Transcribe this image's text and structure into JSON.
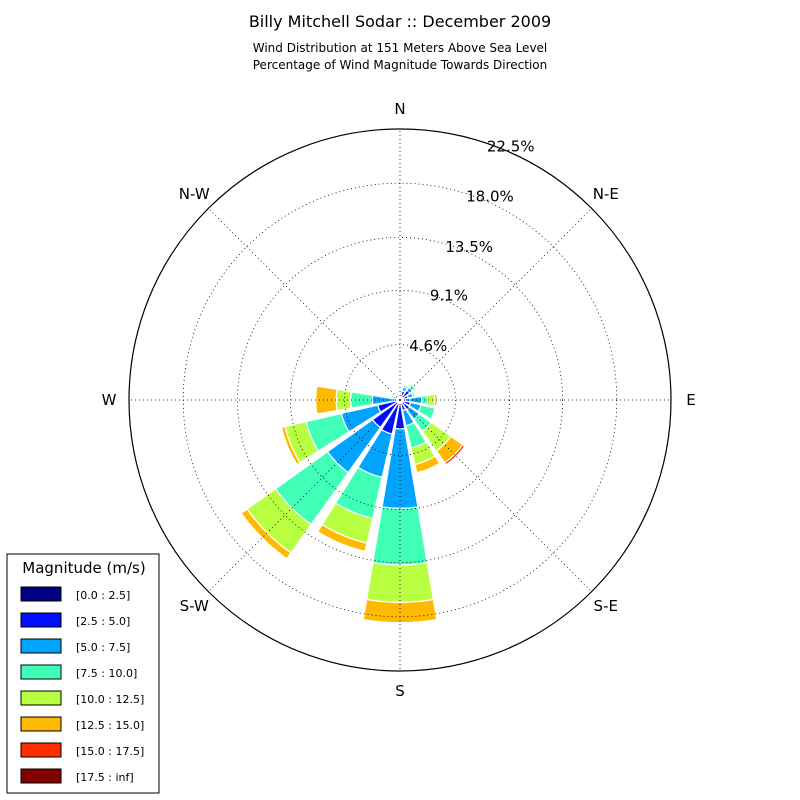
{
  "title": "Billy Mitchell Sodar :: December 2009",
  "subtitle_1": "Wind Distribution at 151 Meters Above Sea Level",
  "subtitle_2": "Percentage of Wind Magnitude Towards Direction",
  "legend": {
    "title": "Magnitude (m/s)",
    "placement": "bottom-left",
    "entries": [
      {
        "label": "[0.0 : 2.5]",
        "color": "#000080"
      },
      {
        "label": "[2.5 : 5.0]",
        "color": "#0010ff"
      },
      {
        "label": "[5.0 : 7.5]",
        "color": "#00a4ff"
      },
      {
        "label": "[7.5 : 10.0]",
        "color": "#40ffb7"
      },
      {
        "label": "[10.0 : 12.5]",
        "color": "#b7ff40"
      },
      {
        "label": "[12.5 : 15.0]",
        "color": "#ffb900"
      },
      {
        "label": "[15.0 : 17.5]",
        "color": "#ff3000"
      },
      {
        "label": "[17.5 : inf]",
        "color": "#800000"
      }
    ]
  },
  "chart_data": {
    "type": "windrose",
    "radial_unit": "percent",
    "radial_ticks": [
      "4.6%",
      "9.1%",
      "13.5%",
      "18.0%",
      "22.5%"
    ],
    "radial_tick_values": [
      4.6,
      9.1,
      13.5,
      18.0,
      22.5
    ],
    "rmax": 22.5,
    "grid": true,
    "direction_labels": [
      {
        "label": "N",
        "angle": 0
      },
      {
        "label": "N-E",
        "angle": 45
      },
      {
        "label": "E",
        "angle": 90
      },
      {
        "label": "S-E",
        "angle": 135
      },
      {
        "label": "S",
        "angle": 180
      },
      {
        "label": "S-W",
        "angle": 225
      },
      {
        "label": "W",
        "angle": 270
      },
      {
        "label": "N-W",
        "angle": 315
      }
    ],
    "bins": [
      "[0.0 : 2.5]",
      "[2.5 : 5.0]",
      "[5.0 : 7.5]",
      "[7.5 : 10.0]",
      "[10.0 : 12.5]",
      "[12.5 : 15.0]",
      "[15.0 : 17.5]",
      "[17.5 : inf]"
    ],
    "sectors": [
      {
        "direction": 0,
        "cumulative": [
          0.1,
          0.15,
          0.2,
          0.2,
          0.2,
          0.2,
          0.2,
          0.2
        ]
      },
      {
        "direction": 22.5,
        "cumulative": [
          0.2,
          0.8,
          1.1,
          1.3,
          1.4,
          1.4,
          1.4,
          1.4
        ]
      },
      {
        "direction": 45,
        "cumulative": [
          0.2,
          1.0,
          1.3,
          1.6,
          1.7,
          1.8,
          1.8,
          1.8
        ]
      },
      {
        "direction": 67.5,
        "cumulative": [
          0.2,
          0.7,
          1.1,
          1.3,
          1.4,
          1.45,
          1.45,
          1.45
        ]
      },
      {
        "direction": 90,
        "cumulative": [
          0.2,
          0.8,
          1.8,
          2.3,
          2.9,
          3.1,
          3.1,
          3.1
        ]
      },
      {
        "direction": 112.5,
        "cumulative": [
          0.3,
          0.9,
          1.8,
          3.0,
          3.0,
          3.1,
          3.1,
          3.1
        ]
      },
      {
        "direction": 135,
        "cumulative": [
          0.3,
          1.0,
          2.0,
          3.2,
          5.2,
          6.4,
          6.6,
          6.6
        ]
      },
      {
        "direction": 157.5,
        "cumulative": [
          0.3,
          0.9,
          2.2,
          4.1,
          5.5,
          6.2,
          6.3,
          6.3
        ]
      },
      {
        "direction": 180,
        "cumulative": [
          0.3,
          2.4,
          9.0,
          13.7,
          16.8,
          18.5,
          18.6,
          18.6
        ]
      },
      {
        "direction": 202.5,
        "cumulative": [
          0.3,
          2.9,
          6.6,
          10.1,
          12.2,
          12.9,
          13.0,
          13.0
        ]
      },
      {
        "direction": 225,
        "cumulative": [
          0.2,
          2.8,
          7.4,
          12.7,
          15.6,
          16.2,
          16.3,
          16.3
        ]
      },
      {
        "direction": 247.5,
        "cumulative": [
          0.2,
          1.9,
          5.0,
          8.0,
          9.8,
          10.1,
          10.1,
          10.1
        ]
      },
      {
        "direction": 270,
        "cumulative": [
          0.1,
          0.7,
          2.3,
          4.1,
          5.3,
          7.0,
          7.0,
          7.0
        ]
      },
      {
        "direction": 292.5,
        "cumulative": [
          0.1,
          0.3,
          0.6,
          0.8,
          0.9,
          0.9,
          0.9,
          0.9
        ]
      },
      {
        "direction": 315,
        "cumulative": [
          0.1,
          0.2,
          0.2,
          0.2,
          0.2,
          0.2,
          0.2,
          0.2
        ]
      },
      {
        "direction": 337.5,
        "cumulative": [
          0.1,
          0.1,
          0.1,
          0.1,
          0.1,
          0.1,
          0.1,
          0.1
        ]
      }
    ]
  }
}
